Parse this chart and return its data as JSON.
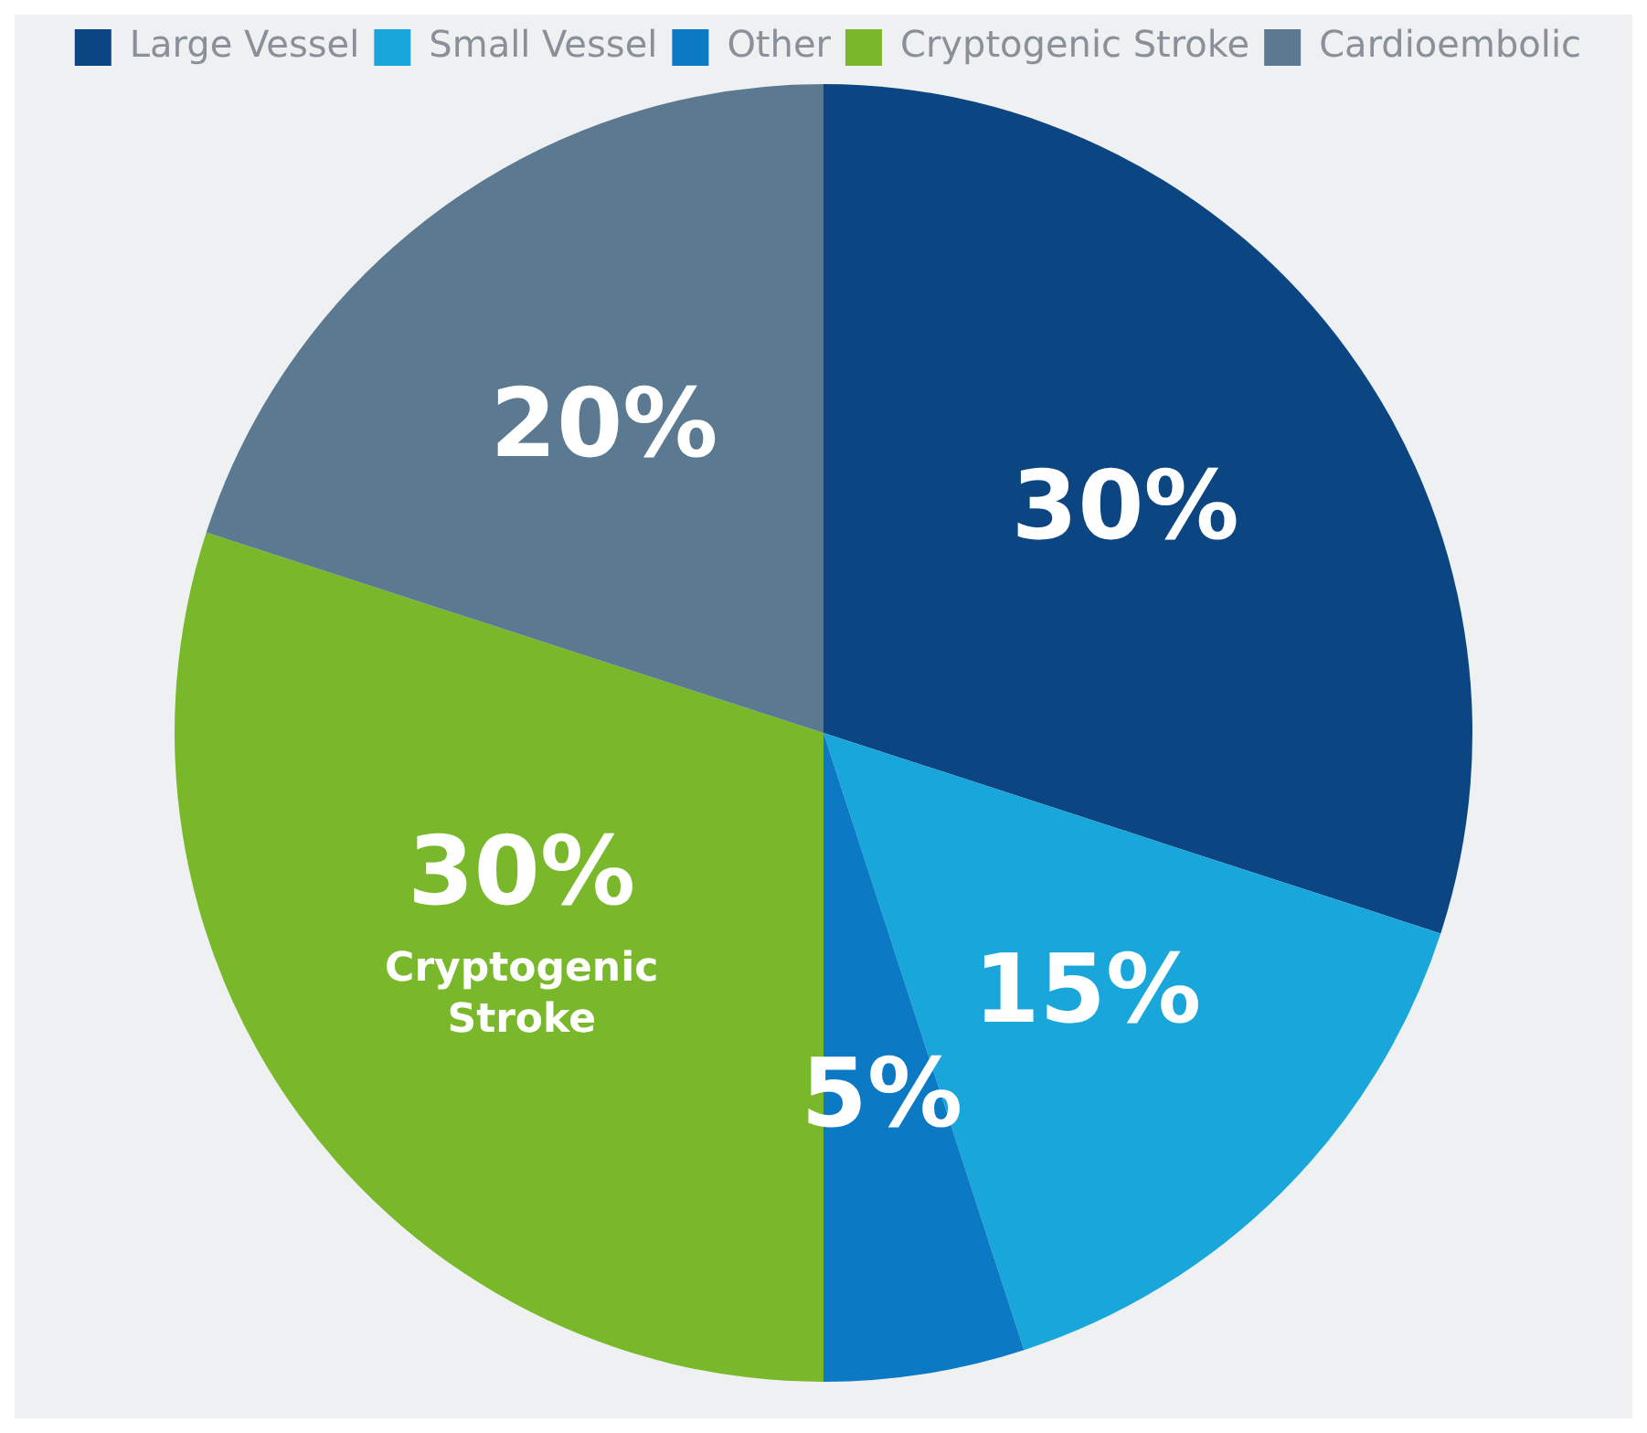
{
  "chart_data": {
    "type": "pie",
    "categories": [
      "Large Vessel",
      "Small Vessel",
      "Other",
      "Cryptogenic Stroke",
      "Cardioembolic"
    ],
    "values": [
      30,
      15,
      5,
      30,
      20
    ],
    "colors": [
      "#0b4683",
      "#19a7db",
      "#0b79c4",
      "#79b82a",
      "#5b7a91"
    ],
    "value_labels": [
      "30%",
      "15%",
      "5%",
      "30%",
      "20%"
    ],
    "annotations": [
      {
        "text": "Cryptogenic Stroke",
        "x": "Cryptogenic Stroke"
      }
    ],
    "legend": "top right"
  }
}
